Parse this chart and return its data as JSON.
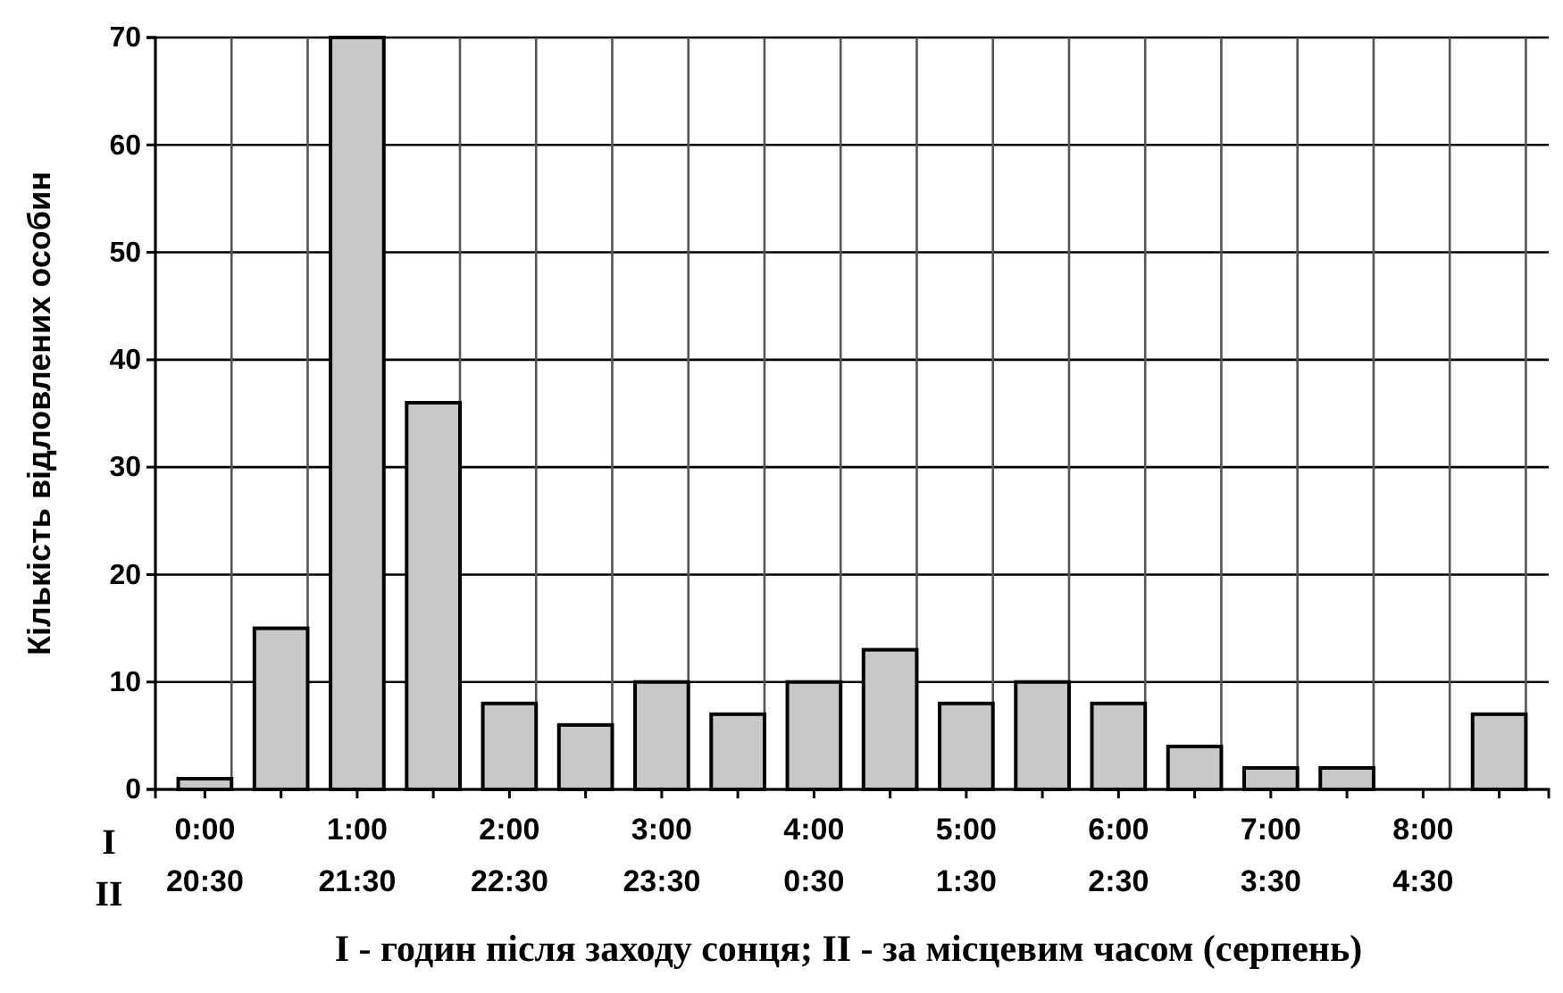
{
  "chart_data": {
    "type": "bar",
    "xlabel": "I - годин після заходу сонця; II - за місцевим часом (серпень)",
    "ylabel": "Кількість відловлених особин",
    "categories": [
      "0:00\n20:30",
      null,
      "1:00\n21:30",
      null,
      "2:00\n22:30",
      null,
      "3:00\n23:30",
      null,
      "4:00\n0:30",
      null,
      "5:00\n1:30",
      null,
      "6:00\n2:30",
      null,
      "7:00\n3:30",
      null,
      "8:00\n4:30",
      null
    ],
    "values": [
      1,
      15,
      70,
      36,
      8,
      6,
      10,
      7,
      10,
      13,
      8,
      10,
      8,
      4,
      2,
      2,
      0,
      7
    ],
    "color": "#c8c8c8",
    "ylim": [
      0,
      70
    ],
    "yticks": [
      0,
      10,
      20,
      30,
      40,
      50,
      60,
      70
    ],
    "grid": true,
    "annotations": [
      "I",
      "II"
    ]
  }
}
